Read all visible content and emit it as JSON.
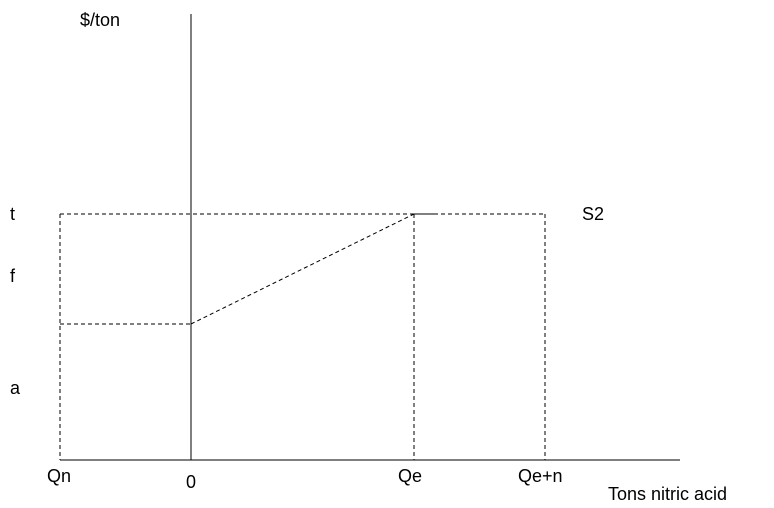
{
  "diagram": {
    "y_axis_label": "$/ton",
    "x_axis_label": "Tons nitric acid",
    "y_ticks": [
      "t",
      "f",
      "a"
    ],
    "x_ticks": [
      "Qn",
      "0",
      "Qe",
      "Qe+n"
    ],
    "curve_label": "S2"
  }
}
